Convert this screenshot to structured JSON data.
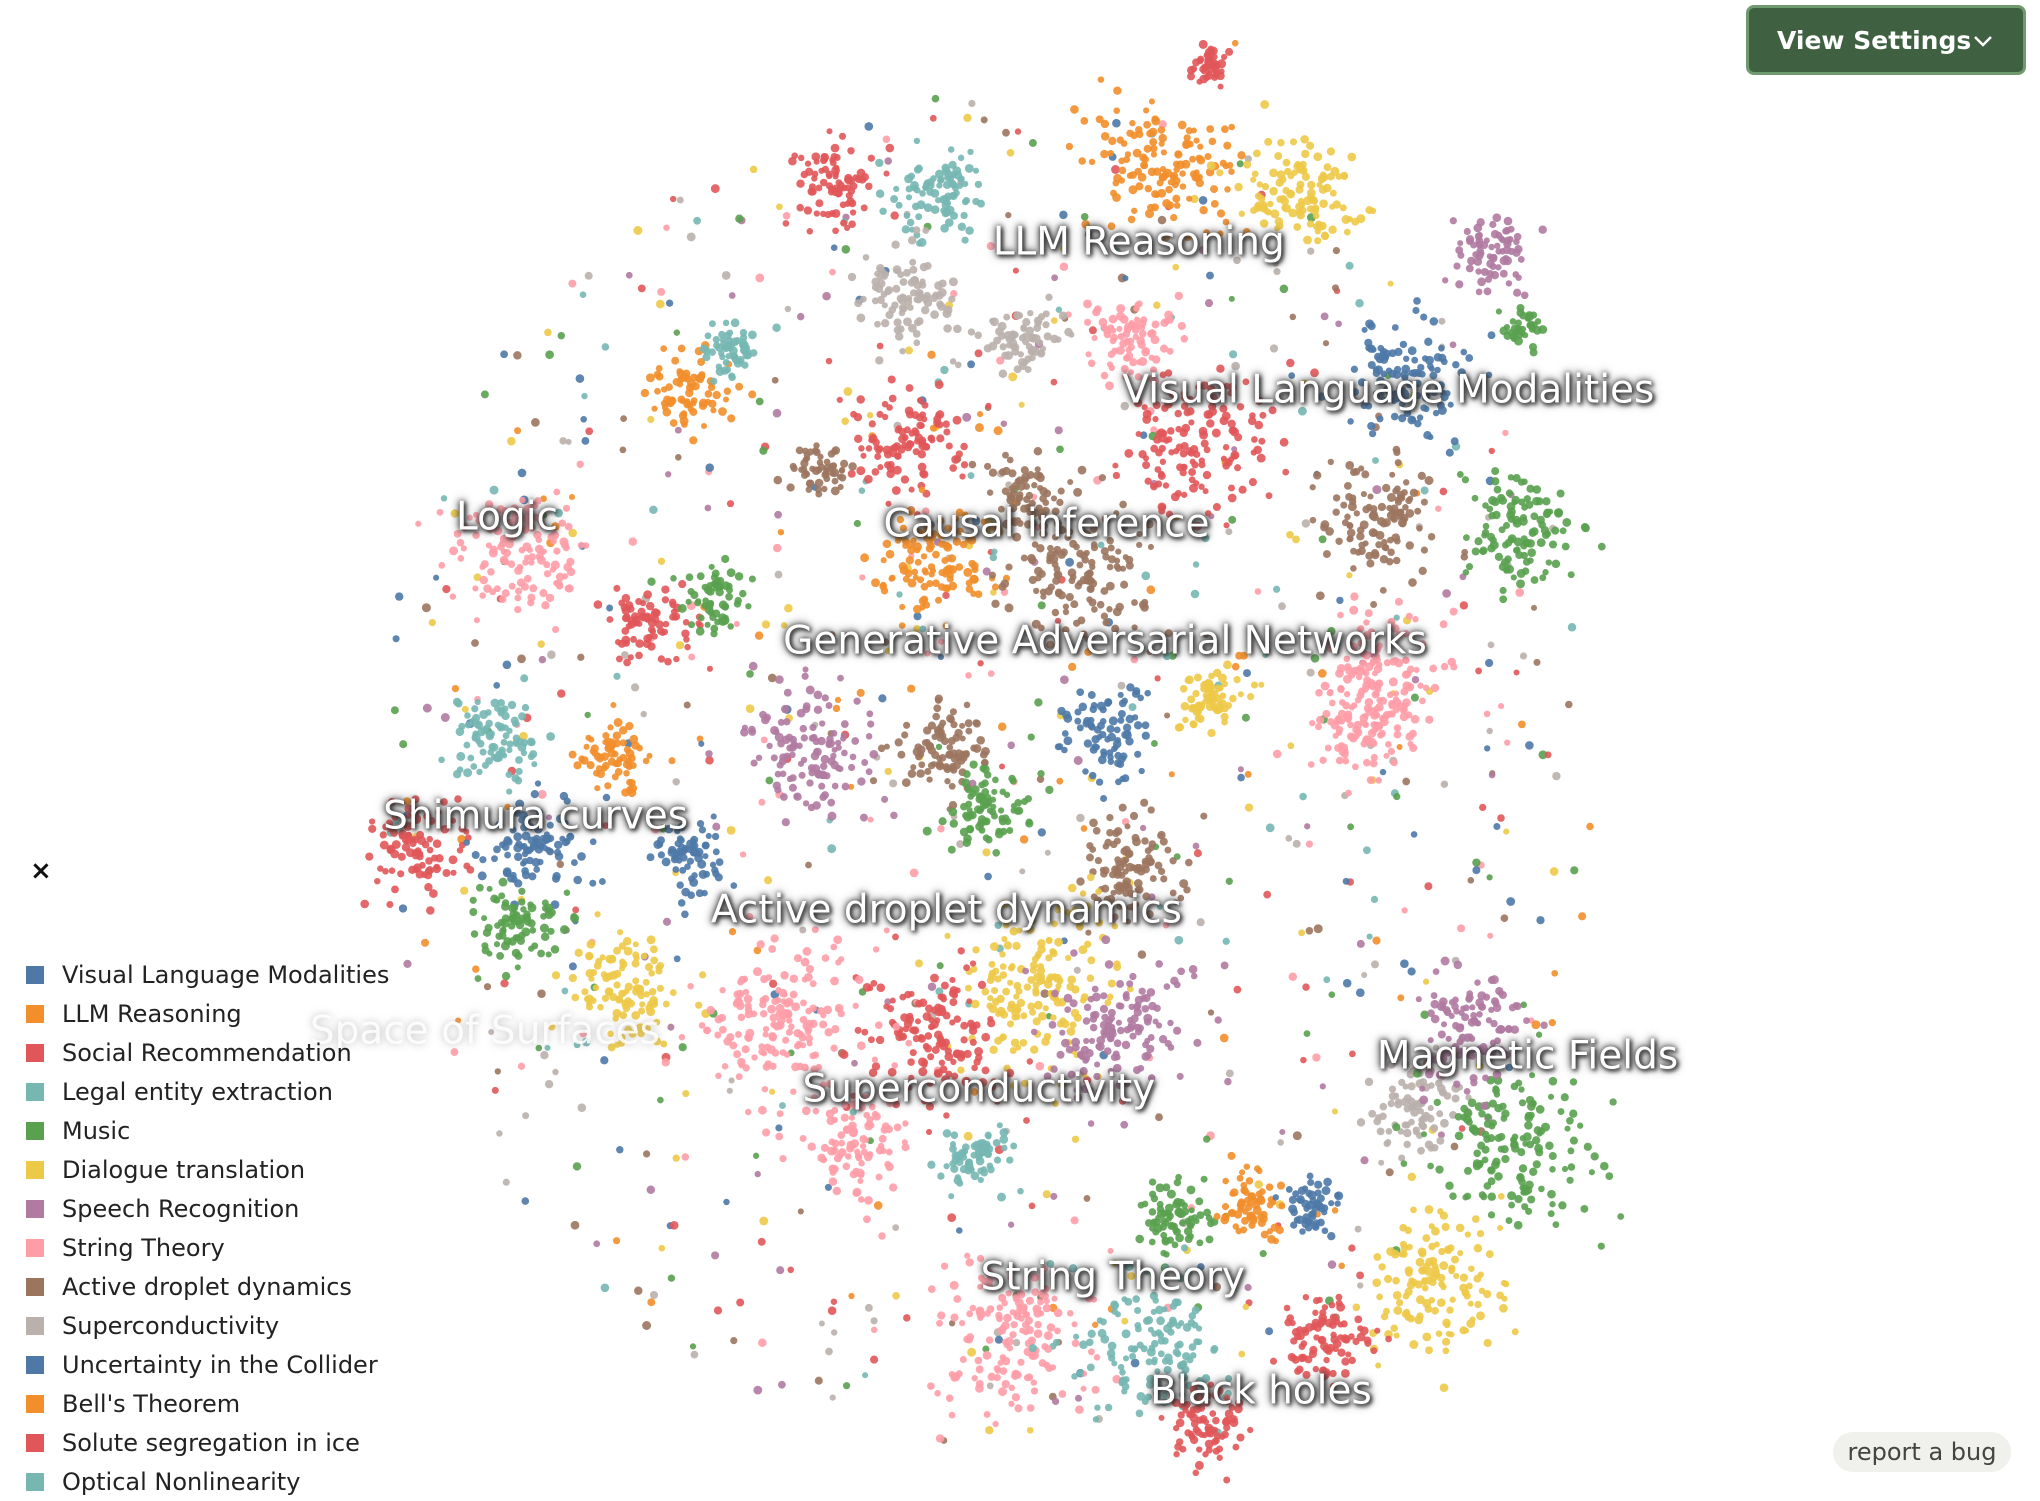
{
  "settings_button": {
    "label": "View Settings"
  },
  "cluster_labels": [
    "LLM Reasoning",
    "Visual Language Modalities",
    "Logic",
    "Causal inference",
    "Generative Adversarial Networks",
    "Shimura curves",
    "Active droplet dynamics",
    "Space of Surfaces",
    "Superconductivity",
    "Magnetic Fields",
    "String Theory",
    "Black holes"
  ],
  "legend": {
    "close": "×",
    "items": [
      {
        "name": "Visual Language Modalities",
        "color": "#4e79a7"
      },
      {
        "name": "LLM Reasoning",
        "color": "#f28e2b"
      },
      {
        "name": "Social Recommendation",
        "color": "#e15759"
      },
      {
        "name": "Legal entity extraction",
        "color": "#76b7b2"
      },
      {
        "name": "Music",
        "color": "#59a14f"
      },
      {
        "name": "Dialogue translation",
        "color": "#edc948"
      },
      {
        "name": "Speech Recognition",
        "color": "#b07aa1"
      },
      {
        "name": "String Theory",
        "color": "#ff9da7"
      },
      {
        "name": "Active droplet dynamics",
        "color": "#9c755f"
      },
      {
        "name": "Superconductivity",
        "color": "#bab0ac"
      },
      {
        "name": "Uncertainty in the Collider",
        "color": "#4e79a7"
      },
      {
        "name": "Bell's Theorem",
        "color": "#f28e2b"
      },
      {
        "name": "Solute segregation in ice",
        "color": "#e15759"
      },
      {
        "name": "Optical Nonlinearity",
        "color": "#76b7b2"
      }
    ]
  },
  "report_bug": "report a bug"
}
